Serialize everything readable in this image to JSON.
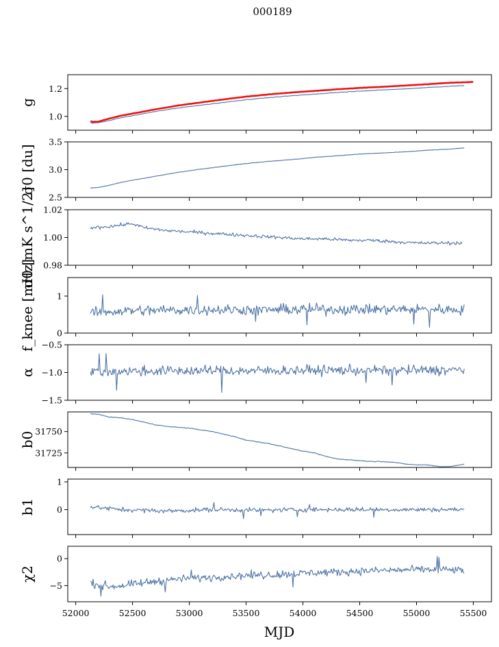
{
  "figure_title": "000189",
  "xlabel": "MJD",
  "colors": {
    "series": "#4c72a6",
    "overlay": "#ee1111"
  },
  "x_ticks": [
    "52000",
    "52500",
    "53000",
    "53500",
    "54000",
    "54500",
    "55000",
    "55500"
  ],
  "x_tick_values": [
    52000,
    52500,
    53000,
    53500,
    54000,
    54500,
    55000,
    55500
  ],
  "chart_data": [
    {
      "type": "line",
      "name": "g",
      "ylabel": "g",
      "xlim": [
        51930,
        55660
      ],
      "ylim": [
        0.9,
        1.3
      ],
      "yticks": [
        1.0,
        1.2
      ],
      "ytick_labels": [
        "1.0",
        "1.2"
      ],
      "series": [
        {
          "name": "g",
          "color": "#4c72a6",
          "x": [
            52130,
            52150,
            52200,
            52300,
            52400,
            52500,
            52700,
            52900,
            53100,
            53300,
            53500,
            53700,
            53900,
            54100,
            54300,
            54500,
            54700,
            54900,
            55100,
            55300,
            55420
          ],
          "values": [
            0.955,
            0.952,
            0.955,
            0.97,
            0.99,
            1.005,
            1.035,
            1.06,
            1.08,
            1.1,
            1.12,
            1.135,
            1.148,
            1.16,
            1.172,
            1.182,
            1.19,
            1.198,
            1.208,
            1.217,
            1.222
          ]
        },
        {
          "name": "g (overlay)",
          "color": "#ee1111",
          "x": [
            52130,
            52150,
            52200,
            52300,
            52400,
            52500,
            52700,
            52900,
            53100,
            53300,
            53500,
            53700,
            53900,
            54100,
            54300,
            54500,
            54700,
            54900,
            55100,
            55300,
            55500
          ],
          "values": [
            0.965,
            0.96,
            0.962,
            0.985,
            1.005,
            1.02,
            1.05,
            1.078,
            1.1,
            1.122,
            1.142,
            1.158,
            1.172,
            1.183,
            1.195,
            1.205,
            1.213,
            1.222,
            1.232,
            1.242,
            1.248
          ]
        }
      ]
    },
    {
      "type": "line",
      "name": "sigma0-du",
      "ylabel": "σ0 [du]",
      "xlim": [
        51930,
        55660
      ],
      "ylim": [
        2.5,
        3.5
      ],
      "yticks": [
        2.5,
        3.0,
        3.5
      ],
      "ytick_labels": [
        "2.5",
        "3.0",
        "3.5"
      ],
      "series": [
        {
          "name": "σ0 [du]",
          "color": "#4c72a6",
          "x": [
            52130,
            52200,
            52300,
            52400,
            52500,
            52700,
            52900,
            53100,
            53300,
            53500,
            53700,
            53900,
            54100,
            54300,
            54500,
            54700,
            54900,
            55100,
            55300,
            55420
          ],
          "values": [
            2.67,
            2.68,
            2.72,
            2.77,
            2.81,
            2.88,
            2.95,
            3.01,
            3.06,
            3.11,
            3.15,
            3.18,
            3.22,
            3.25,
            3.28,
            3.3,
            3.32,
            3.35,
            3.37,
            3.39
          ]
        }
      ]
    },
    {
      "type": "line",
      "name": "sigma0-mk",
      "ylabel": "σ0 [mK s^1/2]",
      "xlim": [
        51930,
        55660
      ],
      "ylim": [
        0.98,
        1.02
      ],
      "yticks": [
        0.98,
        1.0,
        1.02
      ],
      "ytick_labels": [
        "0.98",
        "1.00",
        "1.02"
      ],
      "series": [
        {
          "name": "σ0 [mK s^1/2]",
          "color": "#4c72a6",
          "x": [
            52130,
            52300,
            52500,
            52600,
            52800,
            53000,
            53200,
            53400,
            53600,
            53800,
            54000,
            54200,
            54400,
            54600,
            54800,
            55000,
            55200,
            55400
          ],
          "values": [
            1.007,
            1.008,
            1.01,
            1.007,
            1.005,
            1.004,
            1.003,
            1.002,
            1.001,
            1.0,
            0.999,
            0.999,
            0.998,
            0.998,
            0.997,
            0.996,
            0.996,
            0.996
          ]
        }
      ]
    },
    {
      "type": "line",
      "name": "fknee",
      "ylabel": "f_knee [mHz]",
      "xlim": [
        51930,
        55660
      ],
      "ylim": [
        0,
        1.5
      ],
      "yticks": [
        0,
        1
      ],
      "ytick_labels": [
        "0",
        "1"
      ],
      "series": [
        {
          "name": "f_knee [mHz]",
          "color": "#4c72a6",
          "x": [
            52130,
            52400,
            52800,
            53200,
            53600,
            54000,
            54400,
            54800,
            55200,
            55420
          ],
          "values": [
            0.55,
            0.6,
            0.62,
            0.63,
            0.63,
            0.64,
            0.64,
            0.64,
            0.64,
            0.63
          ]
        }
      ]
    },
    {
      "type": "line",
      "name": "alpha",
      "ylabel": "α",
      "xlim": [
        51930,
        55660
      ],
      "ylim": [
        -1.5,
        -0.5
      ],
      "yticks": [
        -1.5,
        -1.0,
        -0.5
      ],
      "ytick_labels": [
        "−1.5",
        "−1.0",
        "−0.5"
      ],
      "series": [
        {
          "name": "α",
          "color": "#4c72a6",
          "x": [
            52130,
            52400,
            52800,
            53200,
            53600,
            54000,
            54400,
            54800,
            55200,
            55420
          ],
          "values": [
            -0.98,
            -0.98,
            -0.97,
            -0.97,
            -0.97,
            -0.96,
            -0.96,
            -0.96,
            -0.96,
            -0.95
          ]
        }
      ]
    },
    {
      "type": "line",
      "name": "b0",
      "ylabel": "b0",
      "xlim": [
        51930,
        55660
      ],
      "ylim": [
        31708,
        31773
      ],
      "yticks": [
        31725,
        31750
      ],
      "ytick_labels": [
        "31725",
        "31750"
      ],
      "series": [
        {
          "name": "b0",
          "color": "#4c72a6",
          "x": [
            52130,
            52200,
            52300,
            52400,
            52500,
            52600,
            52700,
            52800,
            52900,
            53000,
            53100,
            53200,
            53300,
            53400,
            53500,
            53600,
            53700,
            53800,
            53900,
            54000,
            54100,
            54200,
            54300,
            54400,
            54500,
            54600,
            54700,
            54800,
            54900,
            55000,
            55100,
            55200,
            55300,
            55420
          ],
          "values": [
            31771,
            31770,
            31767,
            31766,
            31764,
            31761,
            31758,
            31756,
            31755,
            31754,
            31752,
            31750,
            31747,
            31744,
            31740,
            31738,
            31736,
            31733,
            31730,
            31727,
            31725,
            31721,
            31718,
            31717,
            31716,
            31715,
            31715,
            31714,
            31712,
            31711,
            31711,
            31709,
            31709,
            31712
          ]
        }
      ]
    },
    {
      "type": "line",
      "name": "b1",
      "ylabel": "b1",
      "xlim": [
        51930,
        55660
      ],
      "ylim": [
        -0.9,
        1.1
      ],
      "yticks": [
        0,
        1
      ],
      "ytick_labels": [
        "0",
        "1"
      ],
      "series": [
        {
          "name": "b1",
          "color": "#4c72a6",
          "x": [
            52130,
            52400,
            52800,
            53200,
            53600,
            54000,
            54400,
            54800,
            55200,
            55420
          ],
          "values": [
            0.1,
            0.0,
            -0.05,
            0.0,
            -0.02,
            0.0,
            0.0,
            0.0,
            0.0,
            0.0
          ]
        }
      ]
    },
    {
      "type": "line",
      "name": "chi2",
      "ylabel": "χ2",
      "xlim": [
        51930,
        55660
      ],
      "ylim": [
        -8,
        2.3
      ],
      "yticks": [
        -5,
        0
      ],
      "ytick_labels": [
        "−5",
        "0"
      ],
      "series": [
        {
          "name": "χ2",
          "color": "#4c72a6",
          "x": [
            52130,
            52300,
            52500,
            52700,
            52900,
            53100,
            53300,
            53500,
            53700,
            53900,
            54100,
            54300,
            54500,
            54700,
            54900,
            55100,
            55300,
            55420
          ],
          "values": [
            -4.5,
            -5.2,
            -4.8,
            -4.2,
            -3.8,
            -3.6,
            -3.3,
            -3.1,
            -3.0,
            -2.8,
            -2.6,
            -2.5,
            -2.3,
            -2.2,
            -2.1,
            -2.0,
            -2.1,
            -2.2
          ]
        }
      ]
    }
  ]
}
